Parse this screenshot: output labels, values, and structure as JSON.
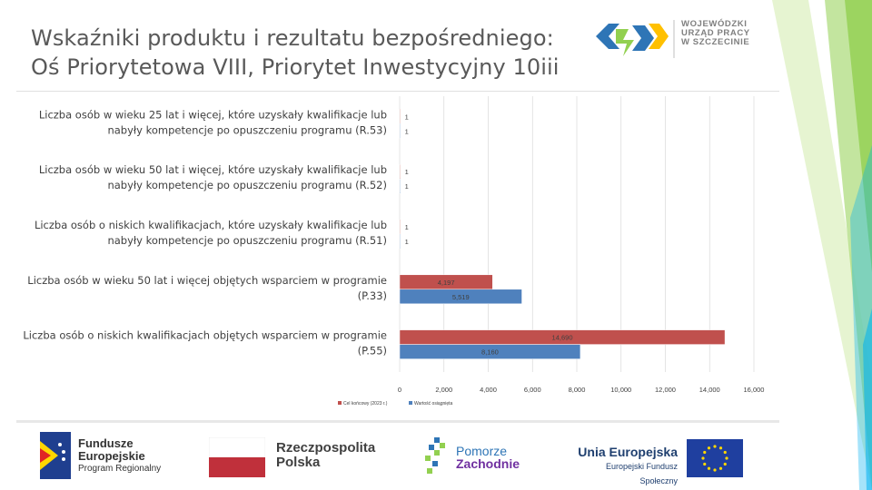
{
  "title": {
    "line1": "Wskaźniki produktu i rezultatu bezpośredniego:",
    "line2": "Oś Priorytetowa VIII, Priorytet Inwestycyjny 10iii"
  },
  "logo_top": {
    "lines": [
      "WOJEWÓDZKI",
      "URZĄD PRACY",
      "W SZCZECINIE"
    ]
  },
  "footer": {
    "fe_lines": [
      "Fundusze",
      "Europejskie",
      "Program Regionalny"
    ],
    "rp_lines": [
      "Rzeczpospolita",
      "Polska"
    ],
    "pz_lines": [
      "Pomorze",
      "Zachodnie"
    ],
    "ue_lines": [
      "Unia Europejska",
      "Europejski Fundusz Społeczny"
    ]
  },
  "colors": {
    "series_target": "#c0504d",
    "series_achieved": "#4f81bd",
    "accent_green": "#92d050",
    "accent_blue": "#00b0f0"
  },
  "chart_data": {
    "type": "bar",
    "orientation": "horizontal",
    "categories": [
      [
        "Liczba osób w wieku 25 lat i więcej, które uzyskały kwalifikacje lub",
        "nabyły kompetencje po opuszczeniu programu (R.53)"
      ],
      [
        "Liczba osób w wieku 50 lat i więcej, które uzyskały kwalifikacje lub",
        "nabyły kompetencje po opuszczeniu programu (R.52)"
      ],
      [
        "Liczba osób o niskich kwalifikacjach, które uzyskały kwalifikacje lub",
        "nabyły kompetencje po opuszczeniu programu (R.51)"
      ],
      [
        "Liczba osób w wieku 50 lat i więcej objętych wsparciem w programie",
        "(P.33)"
      ],
      [
        "Liczba osób o niskich kwalifikacjach objętych wsparciem w programie",
        "(P.55)"
      ]
    ],
    "series": [
      {
        "name": "Cel końcowy (2023 r.)",
        "values": [
          1,
          1,
          1,
          4197,
          14690
        ],
        "labels": [
          "1",
          "1",
          "1",
          "4,197",
          "14,690"
        ]
      },
      {
        "name": "Wartość osiągnięta",
        "values": [
          1,
          1,
          1,
          5519,
          8160
        ],
        "labels": [
          "1",
          "1",
          "1",
          "5,519",
          "8,160"
        ]
      }
    ],
    "xlim": [
      0,
      16000
    ],
    "xticks": [
      0,
      2000,
      4000,
      6000,
      8000,
      10000,
      12000,
      14000,
      16000
    ],
    "xtick_labels": [
      "0",
      "2,000",
      "4,000",
      "6,000",
      "8,000",
      "10,000",
      "12,000",
      "14,000",
      "16,000"
    ],
    "grid": true,
    "legend": "bottom-left"
  }
}
